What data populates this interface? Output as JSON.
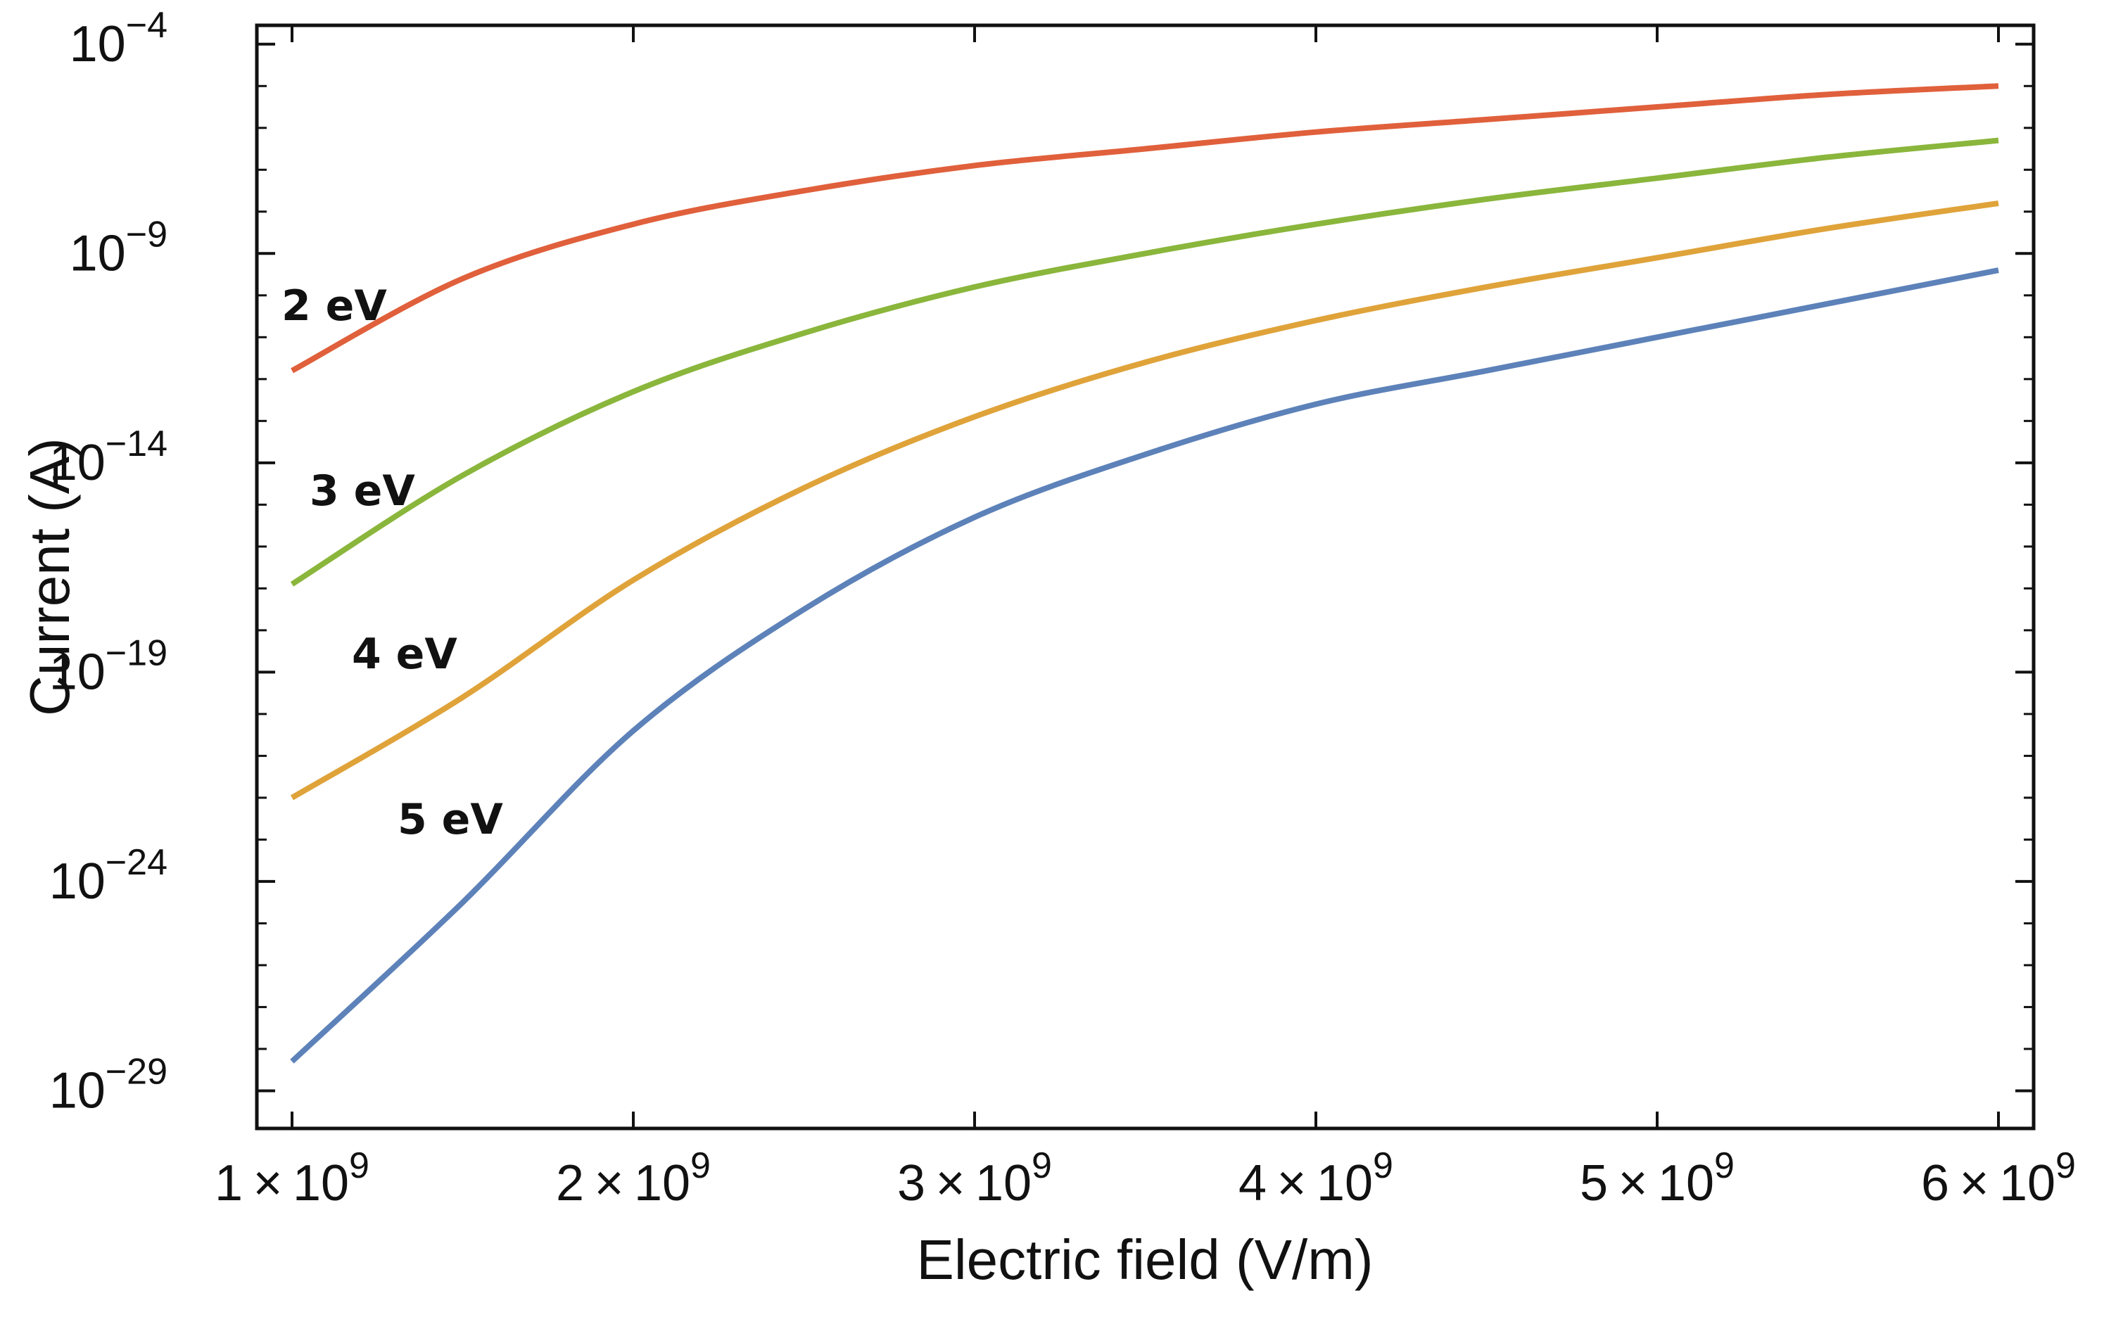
{
  "chart_data": {
    "type": "line",
    "title": "",
    "xlabel": "Electric field (V/m)",
    "ylabel": "Current (A)",
    "xscale": "linear",
    "yscale": "log",
    "xlim": [
      1000000000.0,
      6000000000.0
    ],
    "ylim_log10": [
      -29.9,
      -3.55
    ],
    "grid": false,
    "frame_ticks": true,
    "x_ticks": [
      {
        "value": 1000000000.0,
        "coef": "1",
        "exp": "9"
      },
      {
        "value": 2000000000.0,
        "coef": "2",
        "exp": "9"
      },
      {
        "value": 3000000000.0,
        "coef": "3",
        "exp": "9"
      },
      {
        "value": 4000000000.0,
        "coef": "4",
        "exp": "9"
      },
      {
        "value": 5000000000.0,
        "coef": "5",
        "exp": "9"
      },
      {
        "value": 6000000000.0,
        "coef": "6",
        "exp": "9"
      }
    ],
    "y_ticks": [
      {
        "log10": -4,
        "base": "10",
        "exp": "−4"
      },
      {
        "log10": -9,
        "base": "10",
        "exp": "−9"
      },
      {
        "log10": -14,
        "base": "10",
        "exp": "−14"
      },
      {
        "log10": -19,
        "base": "10",
        "exp": "−19"
      },
      {
        "log10": -24,
        "base": "10",
        "exp": "−24"
      },
      {
        "log10": -29,
        "base": "10",
        "exp": "−29"
      }
    ],
    "x": [
      1000000000.0,
      1500000000.0,
      2000000000.0,
      2500000000.0,
      3000000000.0,
      3500000000.0,
      4000000000.0,
      4500000000.0,
      5000000000.0,
      5500000000.0,
      6000000000.0
    ],
    "series": [
      {
        "name": "2 eV",
        "label": "2 eV",
        "color": "#e0603c",
        "log10_values": [
          -11.8,
          -9.6,
          -8.3,
          -7.5,
          -6.9,
          -6.5,
          -6.1,
          -5.8,
          -5.5,
          -5.2,
          -5.0
        ]
      },
      {
        "name": "3 eV",
        "label": "3 eV",
        "color": "#8ab63c",
        "log10_values": [
          -16.9,
          -14.3,
          -12.3,
          -10.9,
          -9.8,
          -9.0,
          -8.3,
          -7.7,
          -7.2,
          -6.7,
          -6.3
        ]
      },
      {
        "name": "4 eV",
        "label": "4 eV",
        "color": "#dfa33a",
        "log10_values": [
          -22.0,
          -19.6,
          -16.8,
          -14.6,
          -12.9,
          -11.6,
          -10.6,
          -9.8,
          -9.1,
          -8.4,
          -7.8
        ]
      },
      {
        "name": "5 eV",
        "label": "5 eV",
        "color": "#5d82b9",
        "log10_values": [
          -28.3,
          -24.5,
          -20.4,
          -17.5,
          -15.3,
          -13.8,
          -12.6,
          -11.8,
          -11.0,
          -10.2,
          -9.4
        ]
      }
    ]
  }
}
